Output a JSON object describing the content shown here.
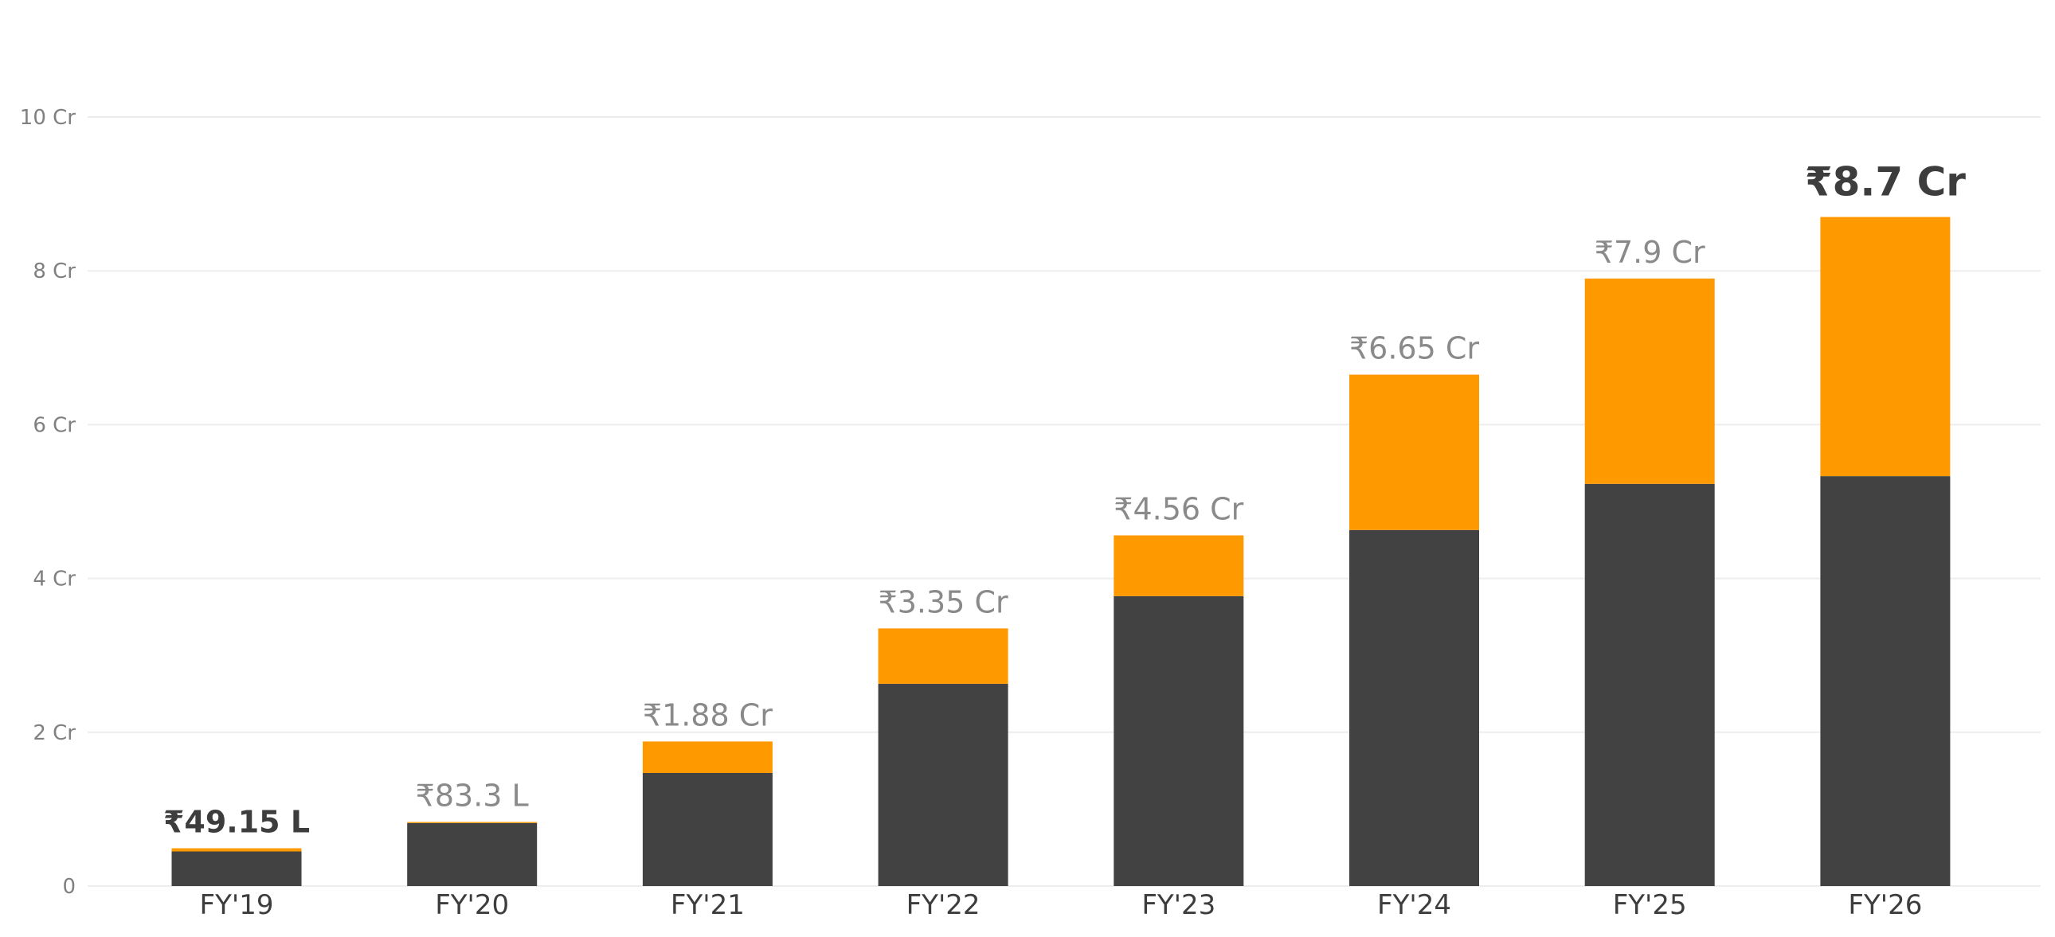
{
  "chart_data": {
    "type": "bar",
    "stacked": true,
    "categories": [
      "FY'19",
      "FY'20",
      "FY'21",
      "FY'22",
      "FY'23",
      "FY'24",
      "FY'25",
      "FY'26"
    ],
    "series": [
      {
        "color": "#424242",
        "values": [
          0.45,
          0.82,
          1.47,
          2.63,
          3.77,
          4.63,
          5.23,
          5.33
        ]
      },
      {
        "color": "#ff9900",
        "values": [
          0.0415,
          0.013,
          0.41,
          0.72,
          0.79,
          2.02,
          2.67,
          3.37
        ]
      }
    ],
    "totals": [
      0.4915,
      0.833,
      1.88,
      3.35,
      4.56,
      6.65,
      7.9,
      8.7
    ],
    "data_labels": [
      "₹49.15 L",
      "₹83.3 L",
      "₹1.88 Cr",
      "₹3.35 Cr",
      "₹4.56 Cr",
      "₹6.65 Cr",
      "₹7.9 Cr",
      "₹8.7 Cr"
    ],
    "highlighted_labels": [
      "FY'19",
      "FY'26"
    ],
    "y_ticks": [
      {
        "value": 0,
        "label": "0"
      },
      {
        "value": 2,
        "label": "2 Cr"
      },
      {
        "value": 4,
        "label": "4 Cr"
      },
      {
        "value": 6,
        "label": "6 Cr"
      },
      {
        "value": 8,
        "label": "8 Cr"
      },
      {
        "value": 10,
        "label": "10 Cr"
      }
    ],
    "ylim": [
      0,
      10
    ],
    "grid": true,
    "title": "",
    "xlabel": "",
    "ylabel": "",
    "colors": {
      "label_muted": "#8a8a8a",
      "label_strong": "#3d3d3d",
      "grid": "#ededed"
    }
  }
}
